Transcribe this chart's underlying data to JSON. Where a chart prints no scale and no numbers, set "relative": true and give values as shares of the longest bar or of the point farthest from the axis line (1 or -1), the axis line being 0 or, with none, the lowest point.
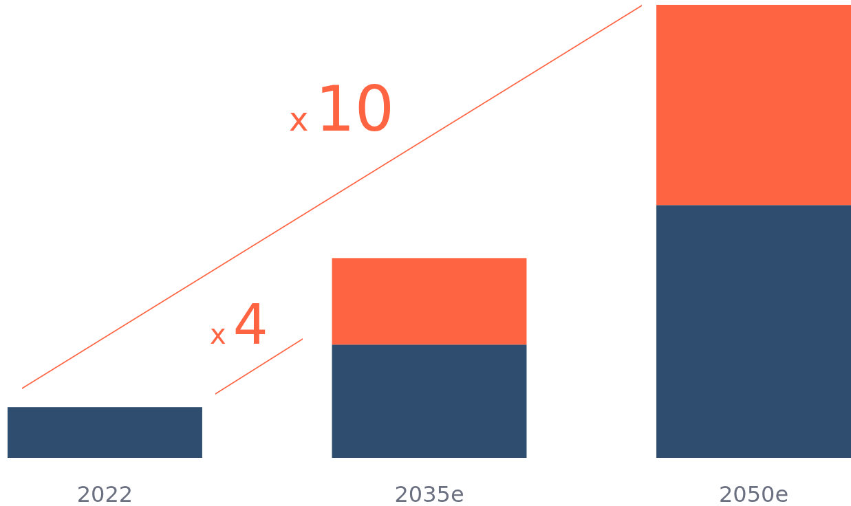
{
  "chart_data": {
    "type": "bar",
    "stacked": true,
    "relative": true,
    "categories": [
      "2022",
      "2035e",
      "2050e"
    ],
    "series": [
      {
        "color": "#2f4d6e",
        "values": [
          0.112,
          0.25,
          0.558
        ]
      },
      {
        "color": "#ff6442",
        "values": [
          0,
          0.191,
          0.442
        ]
      }
    ],
    "annotations": [
      "x10",
      "x4"
    ]
  }
}
